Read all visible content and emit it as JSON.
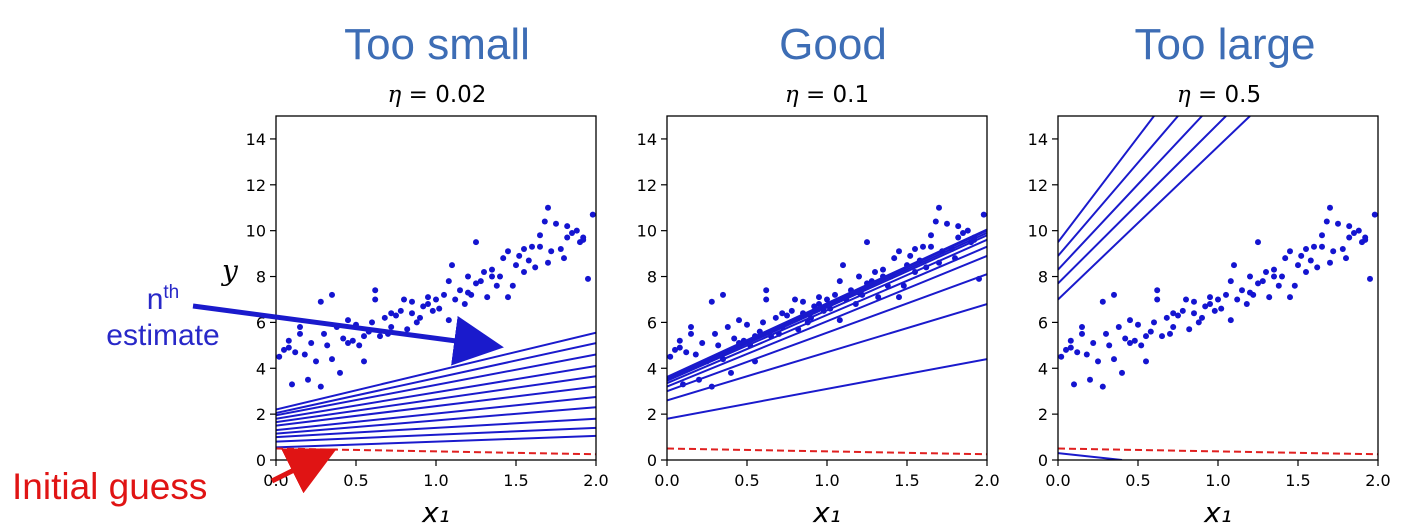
{
  "panels": [
    {
      "heading": "Too small",
      "eta_symbol": "η",
      "eta_value": "= 0.02"
    },
    {
      "heading": "Good",
      "eta_symbol": "η",
      "eta_value": "= 0.1"
    },
    {
      "heading": "Too large",
      "eta_symbol": "η",
      "eta_value": "= 0.5"
    }
  ],
  "annotations": {
    "nth_base": "n",
    "nth_sup": "th",
    "nth_line2": "estimate",
    "initial_guess": "Initial guess"
  },
  "colors": {
    "heading": "#3d6db5",
    "estimate_line": "#1a1acc",
    "data_point": "#1414d0",
    "initial_guess_line": "#e02020",
    "annotation_blue": "#2828c8",
    "annotation_red": "#e01414"
  },
  "chart_data": [
    {
      "type": "scatter",
      "title": "η = 0.02",
      "xlabel": "x₁",
      "ylabel": "y",
      "xlim": [
        0,
        2
      ],
      "ylim": [
        0,
        15
      ],
      "xticks": [
        "0.0",
        "0.5",
        "1.0",
        "1.5",
        "2.0"
      ],
      "yticks": [
        "0",
        "2",
        "4",
        "6",
        "8",
        "10",
        "12",
        "14"
      ],
      "initial_guess": {
        "x": [
          0,
          2
        ],
        "y": [
          0.5,
          0.25
        ]
      },
      "estimate_lines": [
        {
          "x": [
            0,
            2
          ],
          "y": [
            0.55,
            1.05
          ]
        },
        {
          "x": [
            0,
            2
          ],
          "y": [
            0.8,
            1.4
          ]
        },
        {
          "x": [
            0,
            2
          ],
          "y": [
            1.0,
            1.8
          ]
        },
        {
          "x": [
            0,
            2
          ],
          "y": [
            1.15,
            2.3
          ]
        },
        {
          "x": [
            0,
            2
          ],
          "y": [
            1.3,
            2.75
          ]
        },
        {
          "x": [
            0,
            2
          ],
          "y": [
            1.5,
            3.2
          ]
        },
        {
          "x": [
            0,
            2
          ],
          "y": [
            1.65,
            3.65
          ]
        },
        {
          "x": [
            0,
            2
          ],
          "y": [
            1.8,
            4.1
          ]
        },
        {
          "x": [
            0,
            2
          ],
          "y": [
            1.95,
            4.6
          ]
        },
        {
          "x": [
            0,
            2
          ],
          "y": [
            2.05,
            5.1
          ]
        },
        {
          "x": [
            0,
            2
          ],
          "y": [
            2.2,
            5.55
          ]
        }
      ]
    },
    {
      "type": "scatter",
      "title": "η = 0.1",
      "xlabel": "x₁",
      "ylabel": "",
      "xlim": [
        0,
        2
      ],
      "ylim": [
        0,
        15
      ],
      "xticks": [
        "0.0",
        "0.5",
        "1.0",
        "1.5",
        "2.0"
      ],
      "yticks": [
        "0",
        "2",
        "4",
        "6",
        "8",
        "10",
        "12",
        "14"
      ],
      "initial_guess": {
        "x": [
          0,
          2
        ],
        "y": [
          0.5,
          0.25
        ]
      },
      "estimate_lines": [
        {
          "x": [
            0,
            2
          ],
          "y": [
            1.8,
            4.4
          ]
        },
        {
          "x": [
            0,
            2
          ],
          "y": [
            2.6,
            6.8
          ]
        },
        {
          "x": [
            0,
            2
          ],
          "y": [
            3.0,
            8.1
          ]
        },
        {
          "x": [
            0,
            2
          ],
          "y": [
            3.2,
            8.9
          ]
        },
        {
          "x": [
            0,
            2
          ],
          "y": [
            3.35,
            9.3
          ]
        },
        {
          "x": [
            0,
            2
          ],
          "y": [
            3.45,
            9.6
          ]
        },
        {
          "x": [
            0,
            2
          ],
          "y": [
            3.5,
            9.8
          ]
        },
        {
          "x": [
            0,
            2
          ],
          "y": [
            3.55,
            9.9
          ]
        },
        {
          "x": [
            0,
            2
          ],
          "y": [
            3.6,
            10.0
          ]
        },
        {
          "x": [
            0,
            2
          ],
          "y": [
            3.62,
            10.05
          ]
        }
      ]
    },
    {
      "type": "scatter",
      "title": "η = 0.5",
      "xlabel": "x₁",
      "ylabel": "",
      "xlim": [
        0,
        2
      ],
      "ylim": [
        0,
        15
      ],
      "xticks": [
        "0.0",
        "0.5",
        "1.0",
        "1.5",
        "2.0"
      ],
      "yticks": [
        "0",
        "2",
        "4",
        "6",
        "8",
        "10",
        "12",
        "14"
      ],
      "initial_guess": {
        "x": [
          0,
          2
        ],
        "y": [
          0.5,
          0.25
        ]
      },
      "estimate_lines": [
        {
          "x": [
            0,
            0.4
          ],
          "y": [
            0.3,
            0.0
          ]
        },
        {
          "x": [
            0,
            1.2
          ],
          "y": [
            7.0,
            15.0
          ]
        },
        {
          "x": [
            0,
            1.05
          ],
          "y": [
            7.7,
            15.0
          ]
        },
        {
          "x": [
            0,
            0.9
          ],
          "y": [
            8.3,
            15.0
          ]
        },
        {
          "x": [
            0,
            0.75
          ],
          "y": [
            8.9,
            15.0
          ]
        },
        {
          "x": [
            0,
            0.6
          ],
          "y": [
            9.5,
            15.0
          ]
        }
      ]
    }
  ],
  "scatter_points": {
    "x": [
      0.02,
      0.05,
      0.08,
      0.1,
      0.12,
      0.15,
      0.18,
      0.2,
      0.22,
      0.25,
      0.28,
      0.3,
      0.32,
      0.35,
      0.38,
      0.4,
      0.42,
      0.45,
      0.48,
      0.5,
      0.52,
      0.55,
      0.58,
      0.6,
      0.62,
      0.65,
      0.68,
      0.7,
      0.72,
      0.75,
      0.78,
      0.8,
      0.82,
      0.85,
      0.88,
      0.9,
      0.92,
      0.95,
      0.98,
      1.0,
      1.02,
      1.05,
      1.08,
      1.1,
      1.12,
      1.15,
      1.18,
      1.2,
      1.22,
      1.25,
      1.28,
      1.3,
      1.32,
      1.35,
      1.38,
      1.4,
      1.42,
      1.45,
      1.48,
      1.5,
      1.52,
      1.55,
      1.58,
      1.6,
      1.62,
      1.65,
      1.68,
      1.7,
      1.72,
      1.75,
      1.78,
      1.8,
      1.82,
      1.85,
      1.88,
      1.9,
      1.92,
      1.95,
      1.98,
      0.15,
      0.28,
      0.55,
      0.62,
      0.85,
      1.2,
      1.35,
      1.45,
      1.65,
      1.92,
      0.35,
      0.72,
      1.08,
      1.55,
      1.82,
      0.08,
      0.45,
      0.95,
      1.25,
      1.7
    ],
    "y": [
      4.5,
      4.8,
      5.2,
      3.3,
      4.7,
      5.5,
      4.6,
      3.5,
      5.1,
      4.3,
      3.2,
      5.5,
      5.0,
      4.4,
      5.8,
      3.8,
      5.3,
      6.1,
      5.2,
      5.9,
      5.0,
      4.3,
      5.6,
      6.0,
      7.4,
      5.4,
      6.2,
      5.5,
      5.8,
      6.3,
      6.5,
      7.0,
      5.7,
      6.9,
      6.0,
      6.2,
      6.7,
      7.1,
      6.5,
      7.0,
      6.6,
      7.2,
      6.1,
      8.5,
      7.0,
      7.4,
      6.8,
      8.0,
      7.2,
      9.5,
      7.8,
      8.2,
      7.1,
      8.3,
      7.6,
      8.0,
      8.8,
      9.1,
      7.6,
      8.5,
      8.9,
      9.2,
      8.7,
      9.3,
      8.4,
      9.8,
      10.4,
      11.0,
      9.1,
      10.3,
      9.2,
      8.8,
      10.2,
      9.9,
      10.0,
      9.5,
      9.7,
      7.9,
      10.7,
      5.8,
      6.9,
      5.4,
      7.0,
      6.4,
      7.3,
      8.0,
      7.1,
      9.3,
      9.6,
      7.2,
      6.4,
      7.8,
      8.2,
      9.7,
      4.9,
      5.1,
      6.8,
      7.7,
      8.6
    ]
  }
}
